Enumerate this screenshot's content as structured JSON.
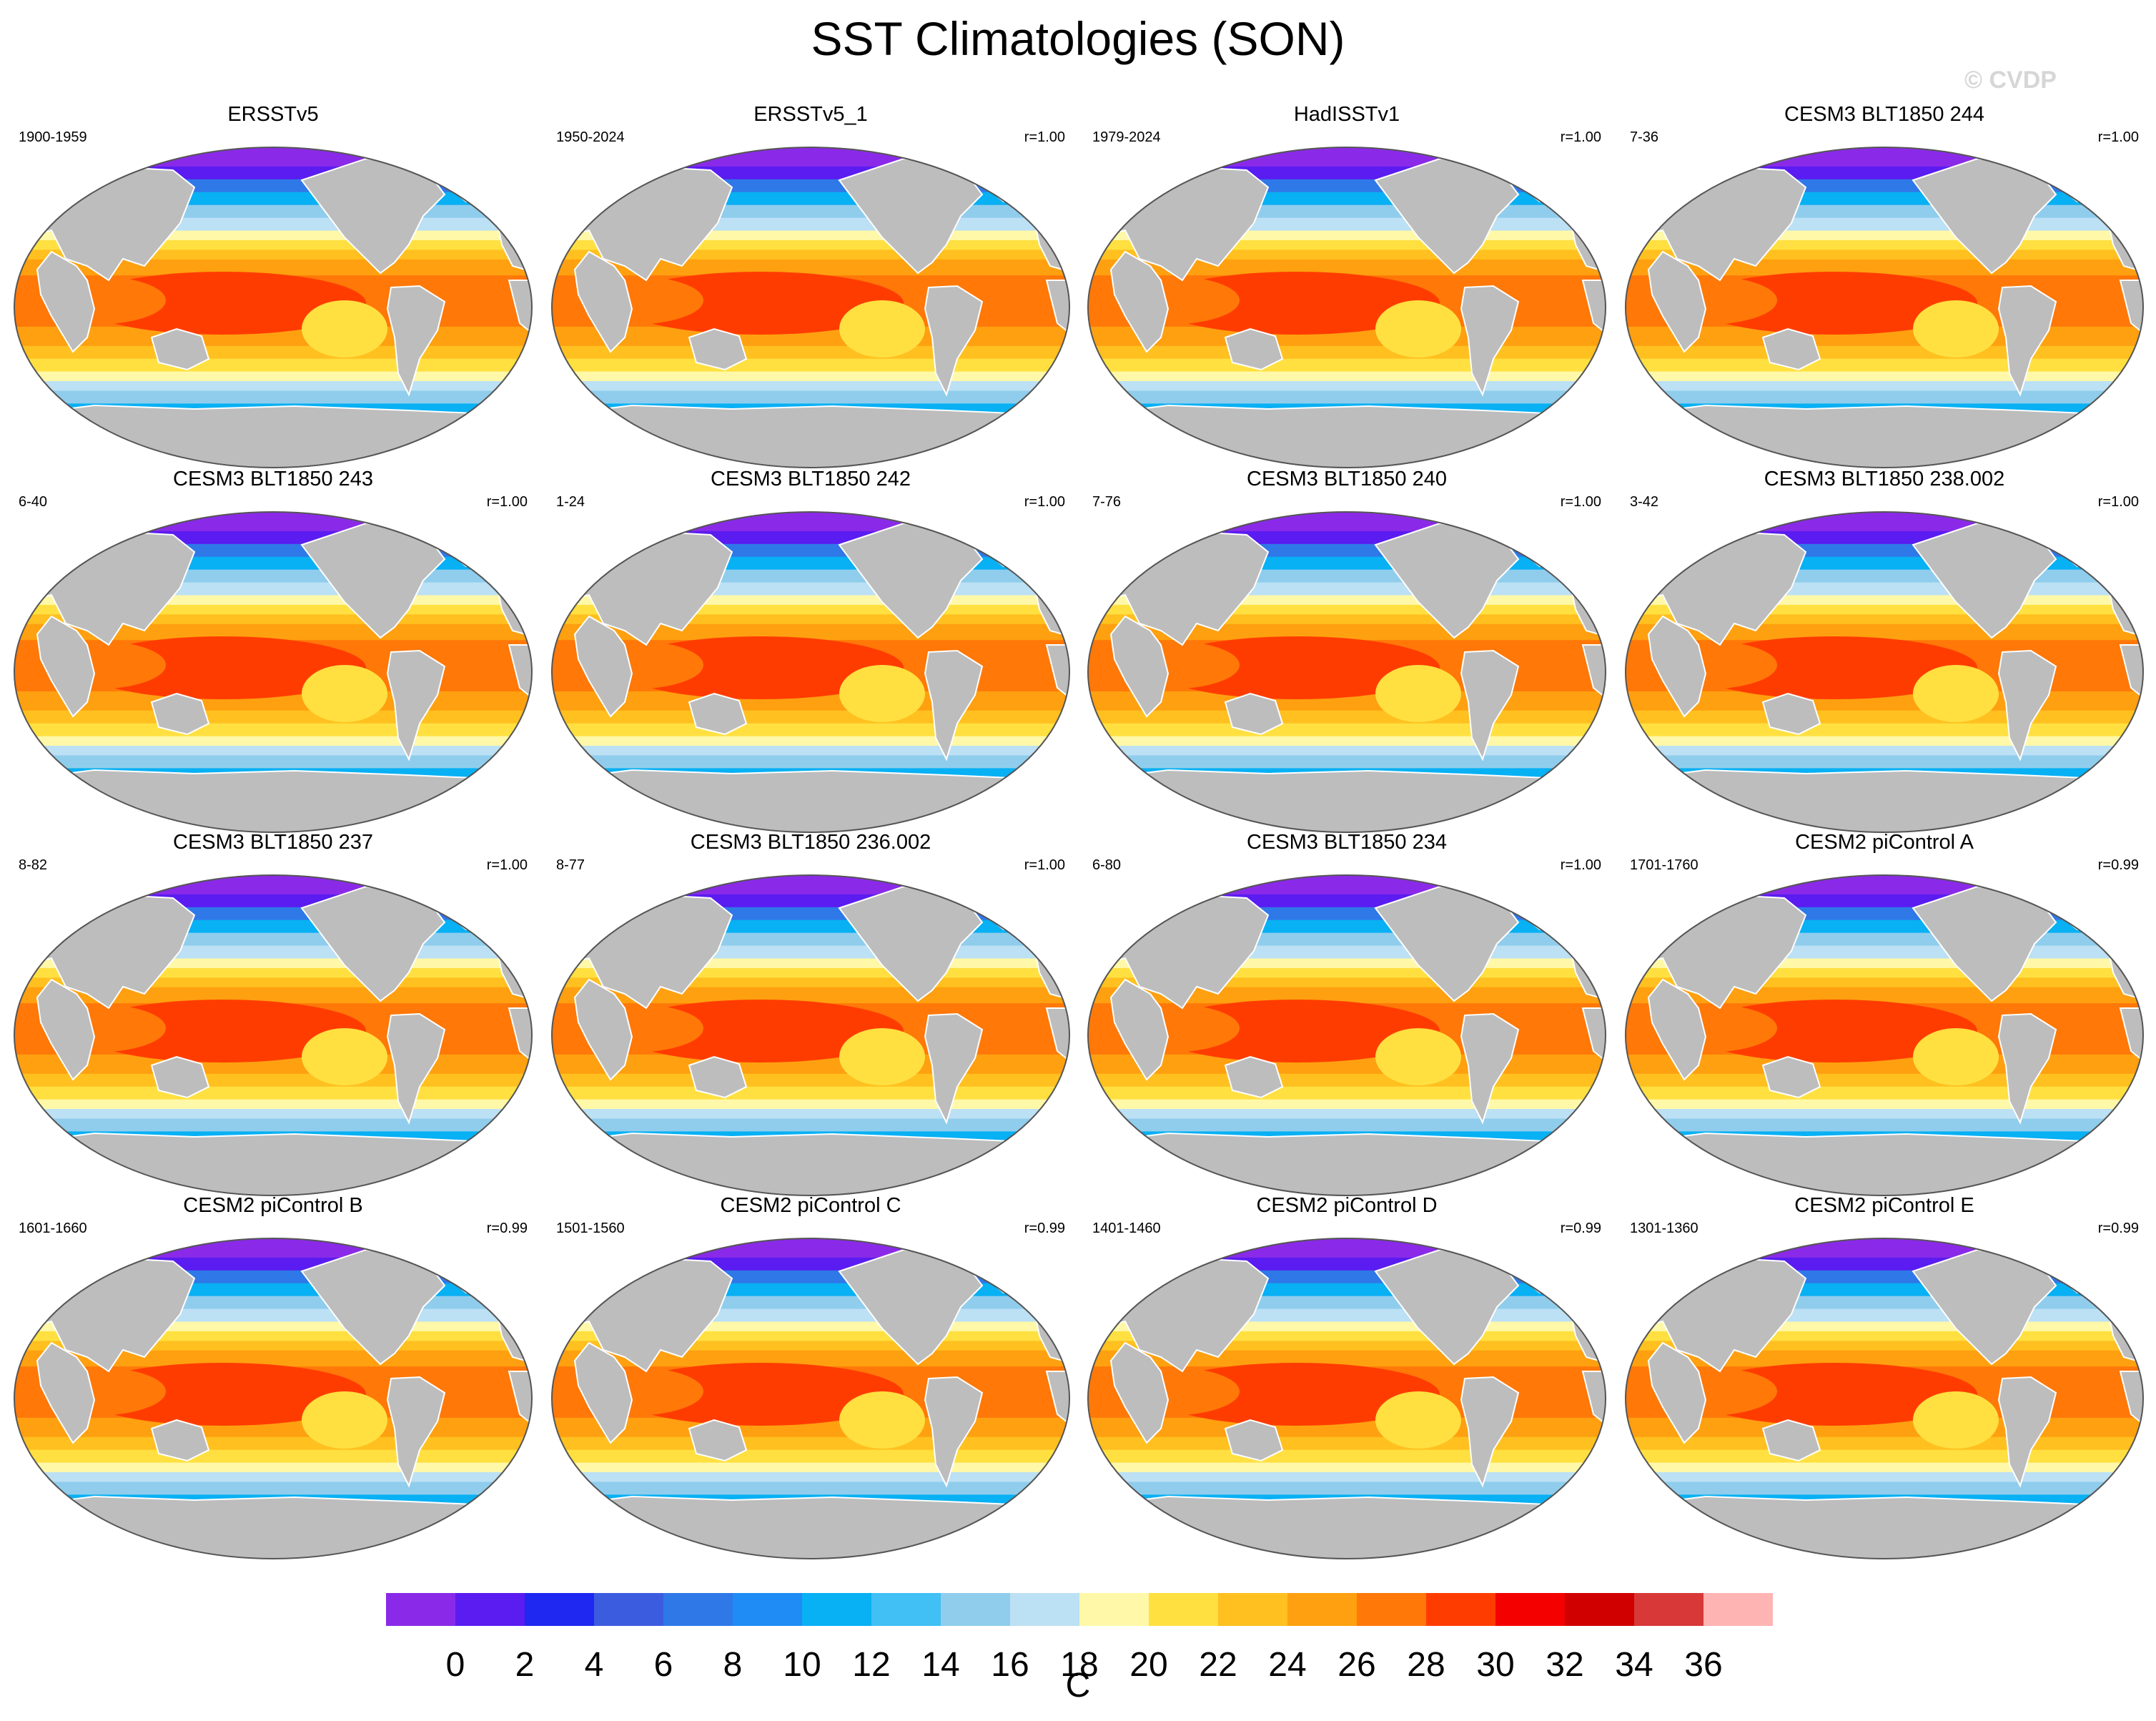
{
  "title": "SST Climatologies (SON)",
  "watermark": "© CVDP",
  "panels": [
    {
      "title": "ERSSTv5",
      "left": "1900-1959",
      "right": ""
    },
    {
      "title": "ERSSTv5_1",
      "left": "1950-2024",
      "right": "r=1.00"
    },
    {
      "title": "HadISSTv1",
      "left": "1979-2024",
      "right": "r=1.00"
    },
    {
      "title": "CESM3 BLT1850 244",
      "left": "7-36",
      "right": "r=1.00"
    },
    {
      "title": "CESM3 BLT1850 243",
      "left": "6-40",
      "right": "r=1.00"
    },
    {
      "title": "CESM3 BLT1850 242",
      "left": "1-24",
      "right": "r=1.00"
    },
    {
      "title": "CESM3 BLT1850 240",
      "left": "7-76",
      "right": "r=1.00"
    },
    {
      "title": "CESM3 BLT1850 238.002",
      "left": "3-42",
      "right": "r=1.00"
    },
    {
      "title": "CESM3 BLT1850 237",
      "left": "8-82",
      "right": "r=1.00"
    },
    {
      "title": "CESM3 BLT1850 236.002",
      "left": "8-77",
      "right": "r=1.00"
    },
    {
      "title": "CESM3 BLT1850 234",
      "left": "6-80",
      "right": "r=1.00"
    },
    {
      "title": "CESM2 piControl A",
      "left": "1701-1760",
      "right": "r=0.99"
    },
    {
      "title": "CESM2 piControl B",
      "left": "1601-1660",
      "right": "r=0.99"
    },
    {
      "title": "CESM2 piControl C",
      "left": "1501-1560",
      "right": "r=0.99"
    },
    {
      "title": "CESM2 piControl D",
      "left": "1401-1460",
      "right": "r=0.99"
    },
    {
      "title": "CESM2 piControl E",
      "left": "1301-1360",
      "right": "r=0.99"
    }
  ],
  "colorbar": {
    "unit": "C",
    "labels": [
      "0",
      "2",
      "4",
      "6",
      "8",
      "10",
      "12",
      "14",
      "16",
      "18",
      "20",
      "22",
      "24",
      "26",
      "28",
      "30",
      "32",
      "34",
      "36"
    ],
    "colors": [
      "#8a2ae8",
      "#5a1cf0",
      "#1e28f0",
      "#3c5ce0",
      "#2f78e8",
      "#1e8cf4",
      "#08b0f4",
      "#40c0f4",
      "#90cdec",
      "#bce0f4",
      "#fff8a8",
      "#ffe040",
      "#ffc020",
      "#ffa010",
      "#ff7808",
      "#ff3c00",
      "#f50000",
      "#d00000",
      "#d83838",
      "#ffb4b4"
    ]
  },
  "map_colors": {
    "land": "#bdbdbd",
    "outline": "#555555"
  }
}
